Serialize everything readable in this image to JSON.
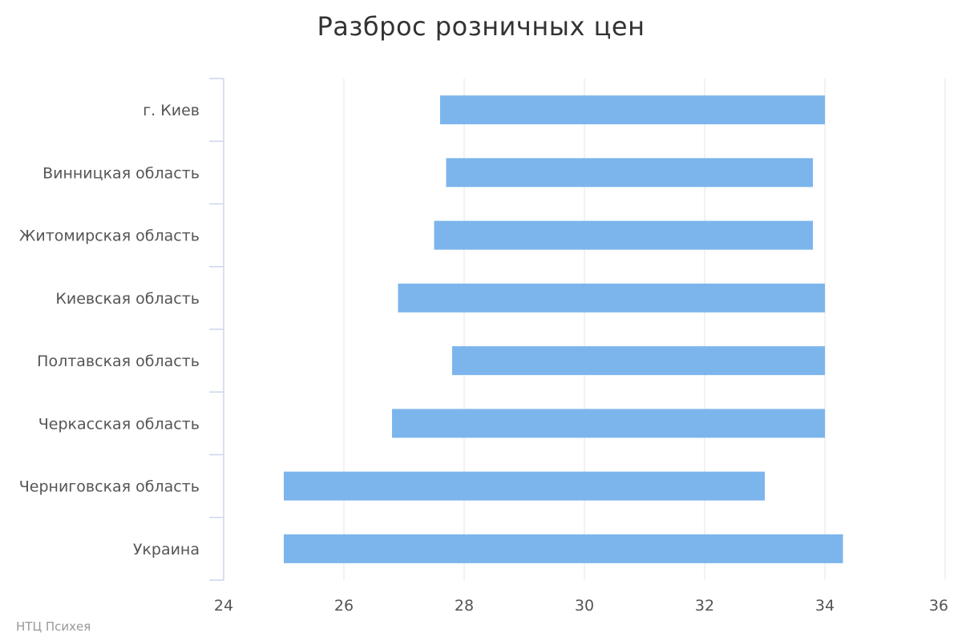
{
  "chart_data": {
    "type": "bar",
    "orientation": "horizontal",
    "subtype": "range",
    "title": "Разброс розничных цен",
    "xlabel": "",
    "ylabel": "",
    "categories": [
      "г. Киев",
      "Винницкая область",
      "Житомирская область",
      "Киевская область",
      "Полтавская область",
      "Черкасская область",
      "Черниговская область",
      "Украина"
    ],
    "series": [
      {
        "low": [
          27.6,
          27.7,
          27.5,
          26.9,
          27.8,
          26.8,
          25.0,
          25.0
        ],
        "high": [
          34.0,
          33.8,
          33.8,
          34.0,
          34.0,
          34.0,
          33.0,
          34.3
        ]
      }
    ],
    "ticks": [
      24,
      26,
      28,
      30,
      32,
      34,
      36
    ],
    "xlim": [
      24,
      36
    ],
    "grid": true,
    "legend": "none",
    "colors": {
      "bar": "#7cb5ec",
      "grid": "#e6e6e6",
      "axis": "#ccd6eb"
    }
  },
  "credits": "НТЦ Психея"
}
